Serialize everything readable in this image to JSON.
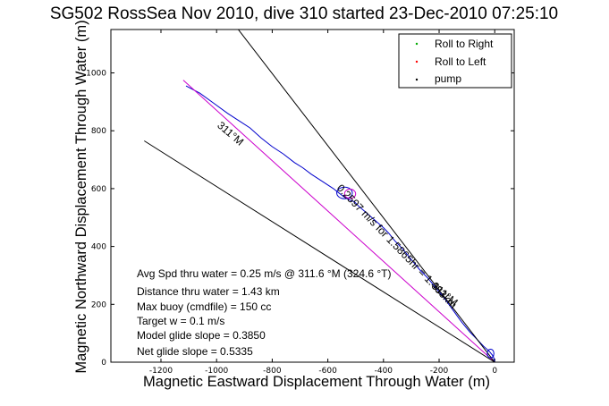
{
  "chart_data": {
    "type": "line",
    "title": "SG502 RossSea Nov 2010, dive 310 started 23-Dec-2010 07:25:10",
    "xlabel": "Magnetic Eastward Displacement Through Water (m)",
    "ylabel": "Magnetic Northward Displacement Through Water (m)",
    "xlim": [
      -1380,
      70
    ],
    "ylim": [
      0,
      1150
    ],
    "xticks": [
      -1200,
      -1000,
      -800,
      -600,
      -400,
      -200,
      0
    ],
    "yticks": [
      0,
      200,
      400,
      600,
      800,
      1000
    ],
    "grid": false,
    "legend_position": "top-right",
    "legend": [
      {
        "label": "Roll to Right",
        "color": "#00aa00",
        "marker": "."
      },
      {
        "label": "Roll to Left",
        "color": "#ff0000",
        "marker": "."
      },
      {
        "label": "pump",
        "color": "#000000",
        "marker": "."
      }
    ],
    "series": [
      {
        "color": "#0000cc",
        "x": [
          -1110,
          -1060,
          -1010,
          -960,
          -920,
          -880,
          -840,
          -800,
          -760,
          -720,
          -690,
          -660,
          -620,
          -580,
          -560,
          -540,
          -520,
          -505,
          -490,
          -460,
          -430,
          -400,
          -380,
          -360,
          -330,
          -300,
          -270,
          -240,
          -210,
          -180,
          -150,
          -120,
          -90,
          -60,
          -40,
          -20,
          -5,
          0
        ],
        "y": [
          955,
          930,
          895,
          860,
          835,
          810,
          775,
          745,
          720,
          690,
          672,
          650,
          625,
          600,
          585,
          570,
          560,
          555,
          540,
          515,
          490,
          465,
          445,
          420,
          390,
          355,
          320,
          290,
          255,
          220,
          180,
          140,
          105,
          75,
          55,
          38,
          20,
          0
        ]
      },
      {
        "color": "#cc00cc",
        "x": [
          -1120,
          0
        ],
        "y": [
          975,
          0
        ]
      },
      {
        "color": "#000000",
        "x": [
          -930,
          0
        ],
        "y": [
          1160,
          0
        ]
      },
      {
        "color": "#000000",
        "x": [
          -1260,
          0
        ],
        "y": [
          765,
          0
        ]
      }
    ],
    "loop_annotations": [
      {
        "color": "#0000cc",
        "x": -540,
        "y": 585,
        "rx": 28,
        "ry": 20
      },
      {
        "color": "#cc00cc",
        "x": -520,
        "y": 582,
        "rx": 20,
        "ry": 16
      },
      {
        "color": "#0000cc",
        "x": -15,
        "y": 30,
        "rx": 12,
        "ry": 15
      }
    ],
    "line_labels": [
      {
        "text": "311°M",
        "x": -1000,
        "y": 815,
        "angle": 40.3
      },
      {
        "text": "0.2597 m/s for 1.5865hr = 1.483km",
        "x": -570,
        "y": 600,
        "angle": 46
      },
      {
        "text": "311°M",
        "x": -230,
        "y": 260,
        "angle": 40.3
      }
    ],
    "annotations": [
      "Avg Spd thru water = 0.25 m/s @ 311.6 °M (324.6 °T)",
      "Distance thru water = 1.43 km",
      "Max buoy (cmdfile) = 150 cc",
      "Target w = 0.1 m/s",
      "Model glide slope = 0.3850",
      "Net glide slope = 0.5335"
    ]
  }
}
